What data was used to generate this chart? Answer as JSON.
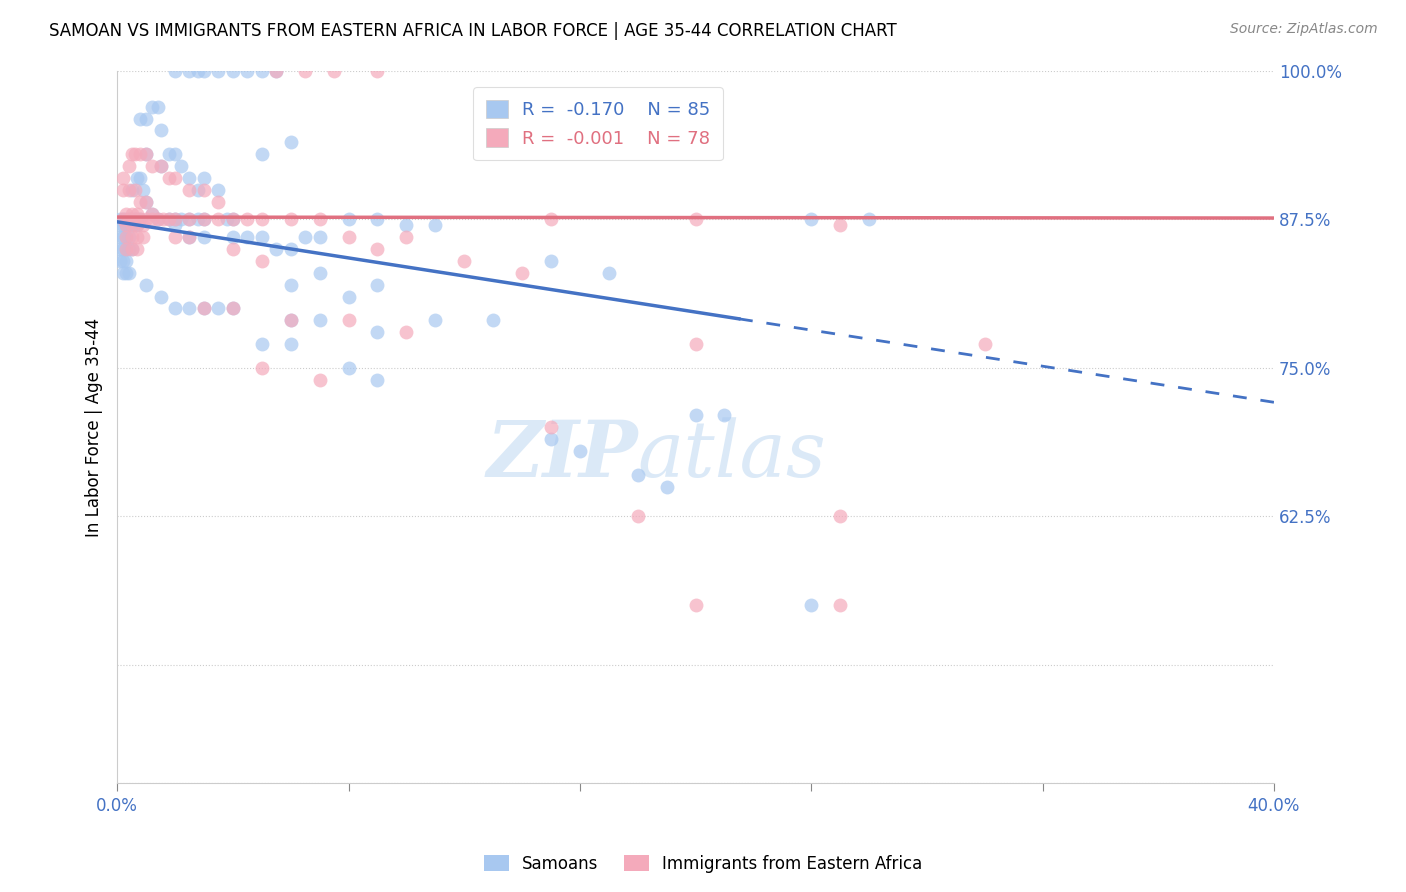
{
  "title": "SAMOAN VS IMMIGRANTS FROM EASTERN AFRICA IN LABOR FORCE | AGE 35-44 CORRELATION CHART",
  "source": "Source: ZipAtlas.com",
  "ylabel": "In Labor Force | Age 35-44",
  "x_min": 0.0,
  "x_max": 0.4,
  "y_min": 0.4,
  "y_max": 1.0,
  "blue_color": "#A8C8F0",
  "pink_color": "#F4AABB",
  "blue_line_color": "#4472C4",
  "pink_line_color": "#E07080",
  "legend_labels_bottom": [
    "Samoans",
    "Immigrants from Eastern Africa"
  ],
  "blue_intercept": 0.873,
  "blue_slope": -0.38,
  "pink_intercept": 0.877,
  "pink_slope": -0.002,
  "blue_line_x_solid_end": 0.215,
  "blue_line_x_dash_end": 0.4,
  "watermark_zip": "ZIP",
  "watermark_atlas": "atlas",
  "background_color": "#FFFFFF",
  "grid_color": "#CCCCCC",
  "blue_scatter": [
    [
      0.002,
      0.875
    ],
    [
      0.003,
      0.875
    ],
    [
      0.004,
      0.875
    ],
    [
      0.005,
      0.875
    ],
    [
      0.002,
      0.87
    ],
    [
      0.003,
      0.87
    ],
    [
      0.004,
      0.87
    ],
    [
      0.005,
      0.87
    ],
    [
      0.002,
      0.86
    ],
    [
      0.003,
      0.86
    ],
    [
      0.001,
      0.86
    ],
    [
      0.004,
      0.86
    ],
    [
      0.002,
      0.85
    ],
    [
      0.003,
      0.85
    ],
    [
      0.004,
      0.85
    ],
    [
      0.005,
      0.85
    ],
    [
      0.002,
      0.84
    ],
    [
      0.003,
      0.84
    ],
    [
      0.001,
      0.84
    ],
    [
      0.002,
      0.83
    ],
    [
      0.003,
      0.83
    ],
    [
      0.004,
      0.83
    ],
    [
      0.001,
      0.875
    ],
    [
      0.001,
      0.87
    ],
    [
      0.001,
      0.85
    ],
    [
      0.006,
      0.875
    ],
    [
      0.007,
      0.875
    ],
    [
      0.008,
      0.875
    ],
    [
      0.006,
      0.87
    ],
    [
      0.007,
      0.87
    ],
    [
      0.005,
      0.9
    ],
    [
      0.007,
      0.91
    ],
    [
      0.008,
      0.91
    ],
    [
      0.009,
      0.9
    ],
    [
      0.01,
      0.89
    ],
    [
      0.012,
      0.88
    ],
    [
      0.014,
      0.875
    ],
    [
      0.015,
      0.92
    ],
    [
      0.018,
      0.93
    ],
    [
      0.02,
      0.93
    ],
    [
      0.022,
      0.92
    ],
    [
      0.018,
      0.875
    ],
    [
      0.02,
      0.875
    ],
    [
      0.022,
      0.875
    ],
    [
      0.025,
      0.91
    ],
    [
      0.028,
      0.9
    ],
    [
      0.03,
      0.91
    ],
    [
      0.025,
      0.875
    ],
    [
      0.028,
      0.875
    ],
    [
      0.03,
      0.875
    ],
    [
      0.035,
      0.9
    ],
    [
      0.038,
      0.875
    ],
    [
      0.04,
      0.875
    ],
    [
      0.01,
      0.96
    ],
    [
      0.012,
      0.97
    ],
    [
      0.014,
      0.97
    ],
    [
      0.02,
      1.0
    ],
    [
      0.025,
      1.0
    ],
    [
      0.028,
      1.0
    ],
    [
      0.03,
      1.0
    ],
    [
      0.035,
      1.0
    ],
    [
      0.04,
      1.0
    ],
    [
      0.045,
      1.0
    ],
    [
      0.05,
      1.0
    ],
    [
      0.055,
      1.0
    ],
    [
      0.008,
      0.96
    ],
    [
      0.015,
      0.95
    ],
    [
      0.01,
      0.93
    ],
    [
      0.05,
      0.93
    ],
    [
      0.06,
      0.94
    ],
    [
      0.01,
      0.82
    ],
    [
      0.015,
      0.81
    ],
    [
      0.02,
      0.87
    ],
    [
      0.025,
      0.86
    ],
    [
      0.03,
      0.86
    ],
    [
      0.04,
      0.86
    ],
    [
      0.045,
      0.86
    ],
    [
      0.05,
      0.86
    ],
    [
      0.055,
      0.85
    ],
    [
      0.06,
      0.85
    ],
    [
      0.065,
      0.86
    ],
    [
      0.07,
      0.86
    ],
    [
      0.08,
      0.875
    ],
    [
      0.09,
      0.875
    ],
    [
      0.1,
      0.87
    ],
    [
      0.11,
      0.87
    ],
    [
      0.02,
      0.8
    ],
    [
      0.025,
      0.8
    ],
    [
      0.03,
      0.8
    ],
    [
      0.035,
      0.8
    ],
    [
      0.04,
      0.8
    ],
    [
      0.08,
      0.81
    ],
    [
      0.09,
      0.82
    ],
    [
      0.06,
      0.82
    ],
    [
      0.07,
      0.83
    ],
    [
      0.15,
      0.84
    ],
    [
      0.17,
      0.83
    ],
    [
      0.24,
      0.875
    ],
    [
      0.26,
      0.875
    ],
    [
      0.06,
      0.79
    ],
    [
      0.07,
      0.79
    ],
    [
      0.09,
      0.78
    ],
    [
      0.11,
      0.79
    ],
    [
      0.13,
      0.79
    ],
    [
      0.05,
      0.77
    ],
    [
      0.06,
      0.77
    ],
    [
      0.08,
      0.75
    ],
    [
      0.09,
      0.74
    ],
    [
      0.2,
      0.71
    ],
    [
      0.21,
      0.71
    ],
    [
      0.15,
      0.69
    ],
    [
      0.16,
      0.68
    ],
    [
      0.18,
      0.66
    ],
    [
      0.19,
      0.65
    ],
    [
      0.24,
      0.55
    ]
  ],
  "pink_scatter": [
    [
      0.002,
      0.91
    ],
    [
      0.004,
      0.92
    ],
    [
      0.005,
      0.93
    ],
    [
      0.006,
      0.93
    ],
    [
      0.008,
      0.93
    ],
    [
      0.01,
      0.93
    ],
    [
      0.012,
      0.92
    ],
    [
      0.015,
      0.92
    ],
    [
      0.018,
      0.91
    ],
    [
      0.02,
      0.91
    ],
    [
      0.002,
      0.875
    ],
    [
      0.004,
      0.875
    ],
    [
      0.006,
      0.875
    ],
    [
      0.008,
      0.875
    ],
    [
      0.01,
      0.875
    ],
    [
      0.012,
      0.875
    ],
    [
      0.014,
      0.875
    ],
    [
      0.016,
      0.875
    ],
    [
      0.018,
      0.875
    ],
    [
      0.02,
      0.875
    ],
    [
      0.002,
      0.9
    ],
    [
      0.004,
      0.9
    ],
    [
      0.006,
      0.9
    ],
    [
      0.008,
      0.89
    ],
    [
      0.01,
      0.89
    ],
    [
      0.012,
      0.88
    ],
    [
      0.003,
      0.88
    ],
    [
      0.005,
      0.88
    ],
    [
      0.007,
      0.88
    ],
    [
      0.003,
      0.87
    ],
    [
      0.005,
      0.87
    ],
    [
      0.007,
      0.87
    ],
    [
      0.009,
      0.87
    ],
    [
      0.003,
      0.86
    ],
    [
      0.005,
      0.86
    ],
    [
      0.007,
      0.86
    ],
    [
      0.009,
      0.86
    ],
    [
      0.003,
      0.85
    ],
    [
      0.005,
      0.85
    ],
    [
      0.007,
      0.85
    ],
    [
      0.025,
      0.9
    ],
    [
      0.03,
      0.9
    ],
    [
      0.035,
      0.89
    ],
    [
      0.04,
      0.875
    ],
    [
      0.045,
      0.875
    ],
    [
      0.05,
      0.875
    ],
    [
      0.06,
      0.875
    ],
    [
      0.07,
      0.875
    ],
    [
      0.025,
      0.875
    ],
    [
      0.03,
      0.875
    ],
    [
      0.035,
      0.875
    ],
    [
      0.055,
      1.0
    ],
    [
      0.065,
      1.0
    ],
    [
      0.075,
      1.0
    ],
    [
      0.09,
      1.0
    ],
    [
      0.02,
      0.86
    ],
    [
      0.025,
      0.86
    ],
    [
      0.04,
      0.85
    ],
    [
      0.05,
      0.84
    ],
    [
      0.08,
      0.86
    ],
    [
      0.09,
      0.85
    ],
    [
      0.1,
      0.86
    ],
    [
      0.15,
      0.875
    ],
    [
      0.2,
      0.875
    ],
    [
      0.12,
      0.84
    ],
    [
      0.14,
      0.83
    ],
    [
      0.03,
      0.8
    ],
    [
      0.04,
      0.8
    ],
    [
      0.06,
      0.79
    ],
    [
      0.08,
      0.79
    ],
    [
      0.25,
      0.87
    ],
    [
      0.1,
      0.78
    ],
    [
      0.05,
      0.75
    ],
    [
      0.07,
      0.74
    ],
    [
      0.2,
      0.77
    ],
    [
      0.15,
      0.7
    ],
    [
      0.25,
      0.625
    ],
    [
      0.18,
      0.625
    ],
    [
      0.3,
      0.77
    ],
    [
      0.2,
      0.55
    ],
    [
      0.25,
      0.55
    ]
  ]
}
